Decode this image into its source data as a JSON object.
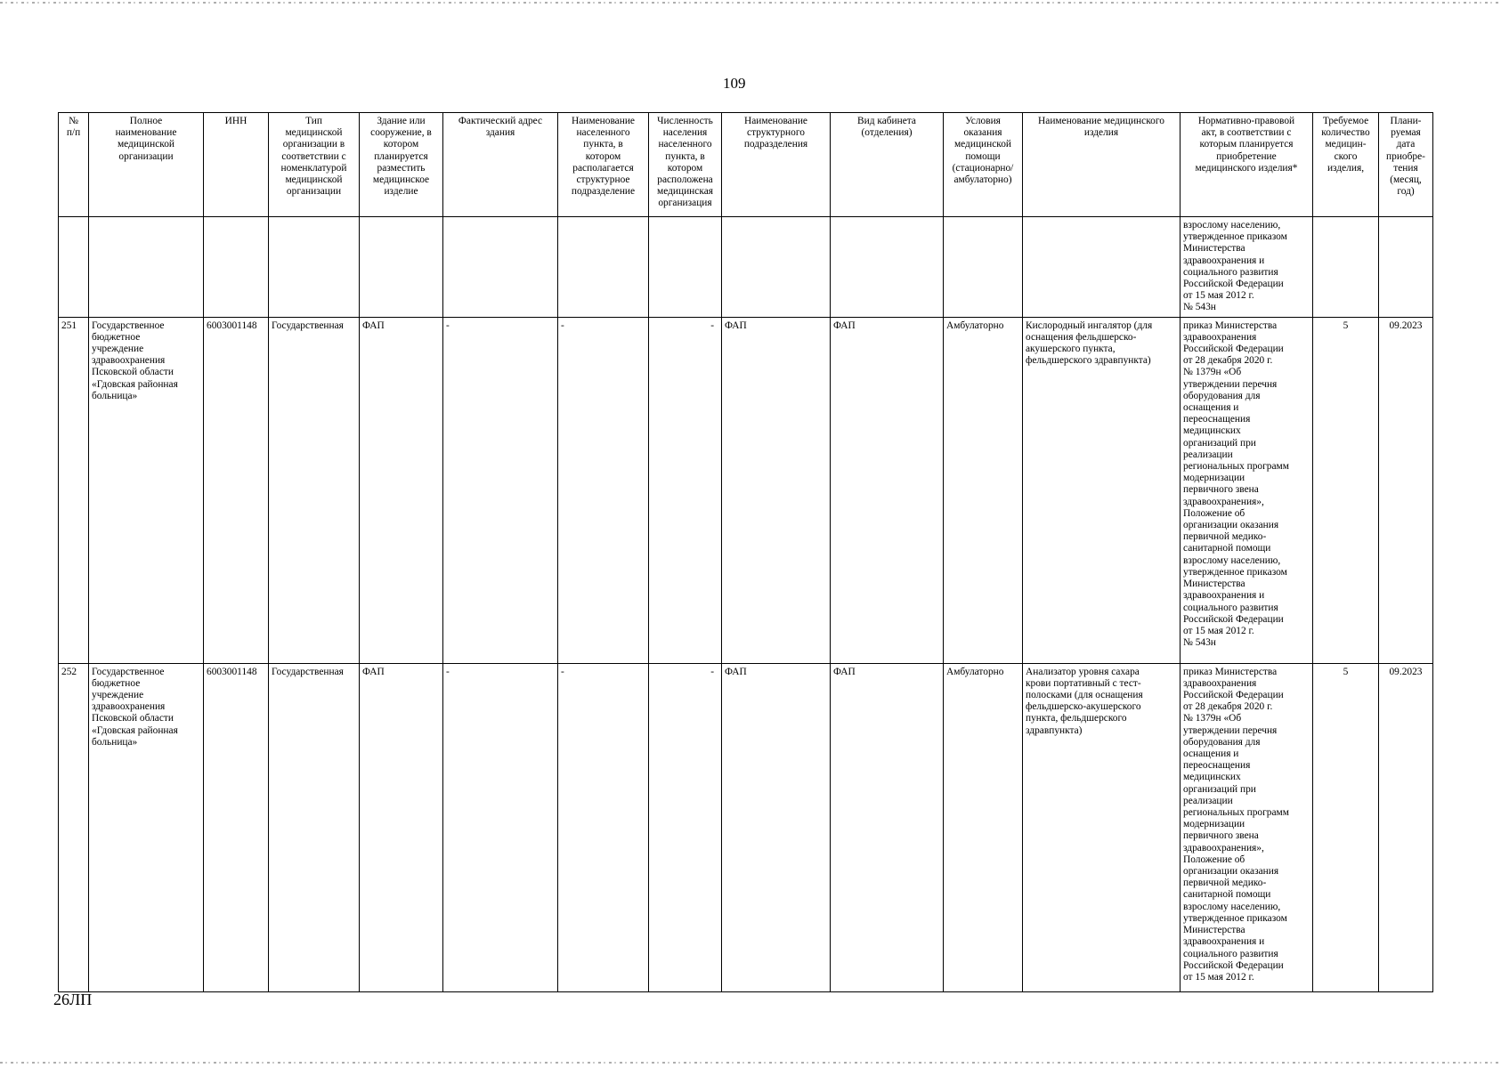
{
  "page_number": "109",
  "footer_code": "26ЛП",
  "table": {
    "headers": [
      "№\nп/п",
      "Полное\nнаименование\nмедицинской\nорганизации",
      "ИНН",
      "Тип\nмедицинской\nорганизации в\nсоответствии с\nноменклатурой\nмедицинской\nорганизации",
      "Здание или\nсооружение, в\nкотором\nпланируется\nразместить\nмедицинское\nизделие",
      "Фактический адрес\nздания",
      "Наименование\nнаселенного\nпункта, в\nкотором\nрасполагается\nструктурное\nподразделение",
      "Численность\nнаселения\nнаселенного\nпункта, в\nкотором\nрасположена\nмедицинская\nорганизация",
      "Наименование\nструктурного\nподразделения",
      "Вид кабинета\n(отделения)",
      "Условия\nоказания\nмедицинской\nпомощи\n(стационарно/\nамбулаторно)",
      "Наименование медицинского\nизделия",
      "Нормативно-правовой\nакт, в соответствии с\nкоторым планируется\nприобретение\nмедицинского изделия*",
      "Требуемое\nколичество\nмедицин-\nского\nизделия,",
      "Плани-\nруемая\nдата\nприобре-\nтения\n(месяц,\nгод)"
    ],
    "continuation_act": "взрослому населению,\nутвержденное приказом\nМинистерства\nздравоохранения и\nсоциального развития\nРоссийской Федерации\nот 15 мая 2012 г.\n№ 543н",
    "rows": [
      {
        "num": "251",
        "org": "Государственное\nбюджетное\nучреждение\nздравоохранения\nПсковской области\n«Гдовская районная\nбольница»",
        "inn": "6003001148",
        "type": "Государственная",
        "building": "ФАП",
        "address": "-",
        "locality": "-",
        "population": "-",
        "unit": "ФАП",
        "cabinet": "ФАП",
        "conditions": "Амбулаторно",
        "device": "Кислородный ингалятор (для\nоснащения фельдшерско-\nакушерского пункта,\nфельдшерского здравпункта)",
        "act": "приказ Министерства\nздравоохранения\nРоссийской Федерации\nот 28 декабря 2020 г.\n№ 1379н «Об\nутверждении перечня\nоборудования для\nоснащения и\nпереоснащения\nмедицинских\nорганизаций при\nреализации\nрегиональных программ\nмодернизации\nпервичного звена\nздравоохранения»,\nПоложение об\nорганизации оказания\nпервичной медико-\nсанитарной помощи\nвзрослому населению,\nутвержденное приказом\nМинистерства\nздравоохранения и\nсоциального развития\nРоссийской Федерации\nот 15 мая 2012 г.\n№ 543н",
        "quantity": "5",
        "date": "09.2023"
      },
      {
        "num": "252",
        "org": "Государственное\nбюджетное\nучреждение\nздравоохранения\nПсковской области\n«Гдовская районная\nбольница»",
        "inn": "6003001148",
        "type": "Государственная",
        "building": "ФАП",
        "address": "-",
        "locality": "-",
        "population": "-",
        "unit": "ФАП",
        "cabinet": "ФАП",
        "conditions": "Амбулаторно",
        "device": "Анализатор уровня сахара\nкрови портативный с тест-\nполосками (для оснащения\nфельдшерско-акушерского\nпункта, фельдшерского\nздравпункта)",
        "act": "приказ Министерства\nздравоохранения\nРоссийской Федерации\nот 28 декабря 2020 г.\n№ 1379н «Об\nутверждении перечня\nоборудования для\nоснащения и\nпереоснащения\nмедицинских\nорганизаций при\nреализации\nрегиональных программ\nмодернизации\nпервичного звена\nздравоохранения»,\nПоложение об\nорганизации оказания\nпервичной медико-\nсанитарной помощи\nвзрослому населению,\nутвержденное приказом\nМинистерства\nздравоохранения и\nсоциального развития\nРоссийской Федерации\nот 15 мая 2012 г.",
        "quantity": "5",
        "date": "09.2023"
      }
    ]
  }
}
